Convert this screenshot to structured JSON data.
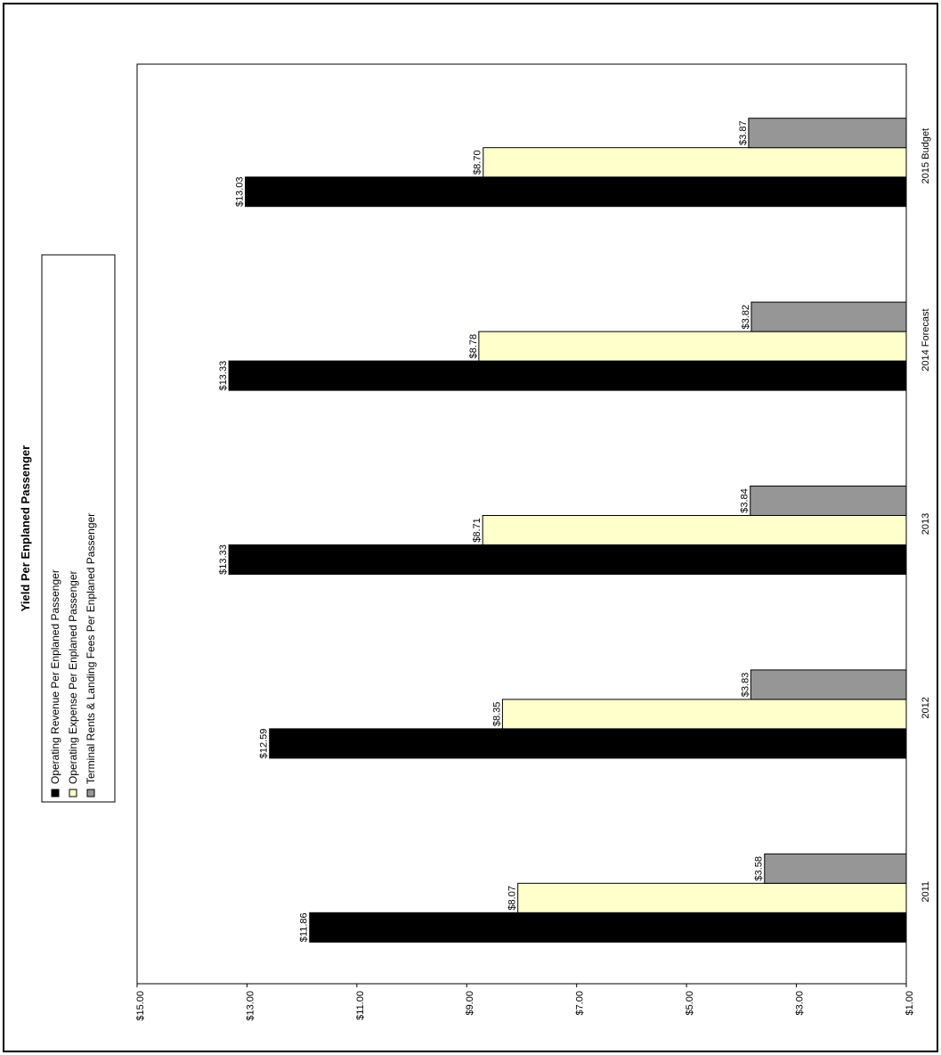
{
  "chart_data": {
    "type": "bar",
    "orientation": "rotated-90",
    "title": "Yield Per Enplaned Passenger",
    "categories": [
      "2011",
      "2012",
      "2013",
      "2014 Forecast",
      "2015 Budget"
    ],
    "series": [
      {
        "name": "Operating Revenue Per Enplaned Passenger",
        "color": "#000000",
        "values": [
          11.86,
          12.59,
          13.33,
          13.33,
          13.03
        ],
        "labels": [
          "$11.86",
          "$12.59",
          "$13.33",
          "$13.33",
          "$13.03"
        ]
      },
      {
        "name": "Operating Expense Per Enplaned Passenger",
        "color": "#FFFFCC",
        "values": [
          8.07,
          8.35,
          8.71,
          8.78,
          8.7
        ],
        "labels": [
          "$8.07",
          "$8.35",
          "$8.71",
          "$8.78",
          "$8.70"
        ]
      },
      {
        "name": "Terminal Rents & Landing Fees Per Enplaned Passenger",
        "color": "#969696",
        "values": [
          3.58,
          3.83,
          3.84,
          3.82,
          3.87
        ],
        "labels": [
          "$3.58",
          "$3.83",
          "$3.84",
          "$3.82",
          "$3.87"
        ]
      }
    ],
    "ylim": [
      1,
      15
    ],
    "ticks": [
      1,
      3,
      5,
      7,
      9,
      11,
      13,
      15
    ],
    "tick_labels": [
      "$1.00",
      "$3.00",
      "$5.00",
      "$7.00",
      "$9.00",
      "$11.00",
      "$13.00",
      "$15.00"
    ],
    "xlabel": "",
    "ylabel": "",
    "grid": false,
    "legend": "left"
  }
}
